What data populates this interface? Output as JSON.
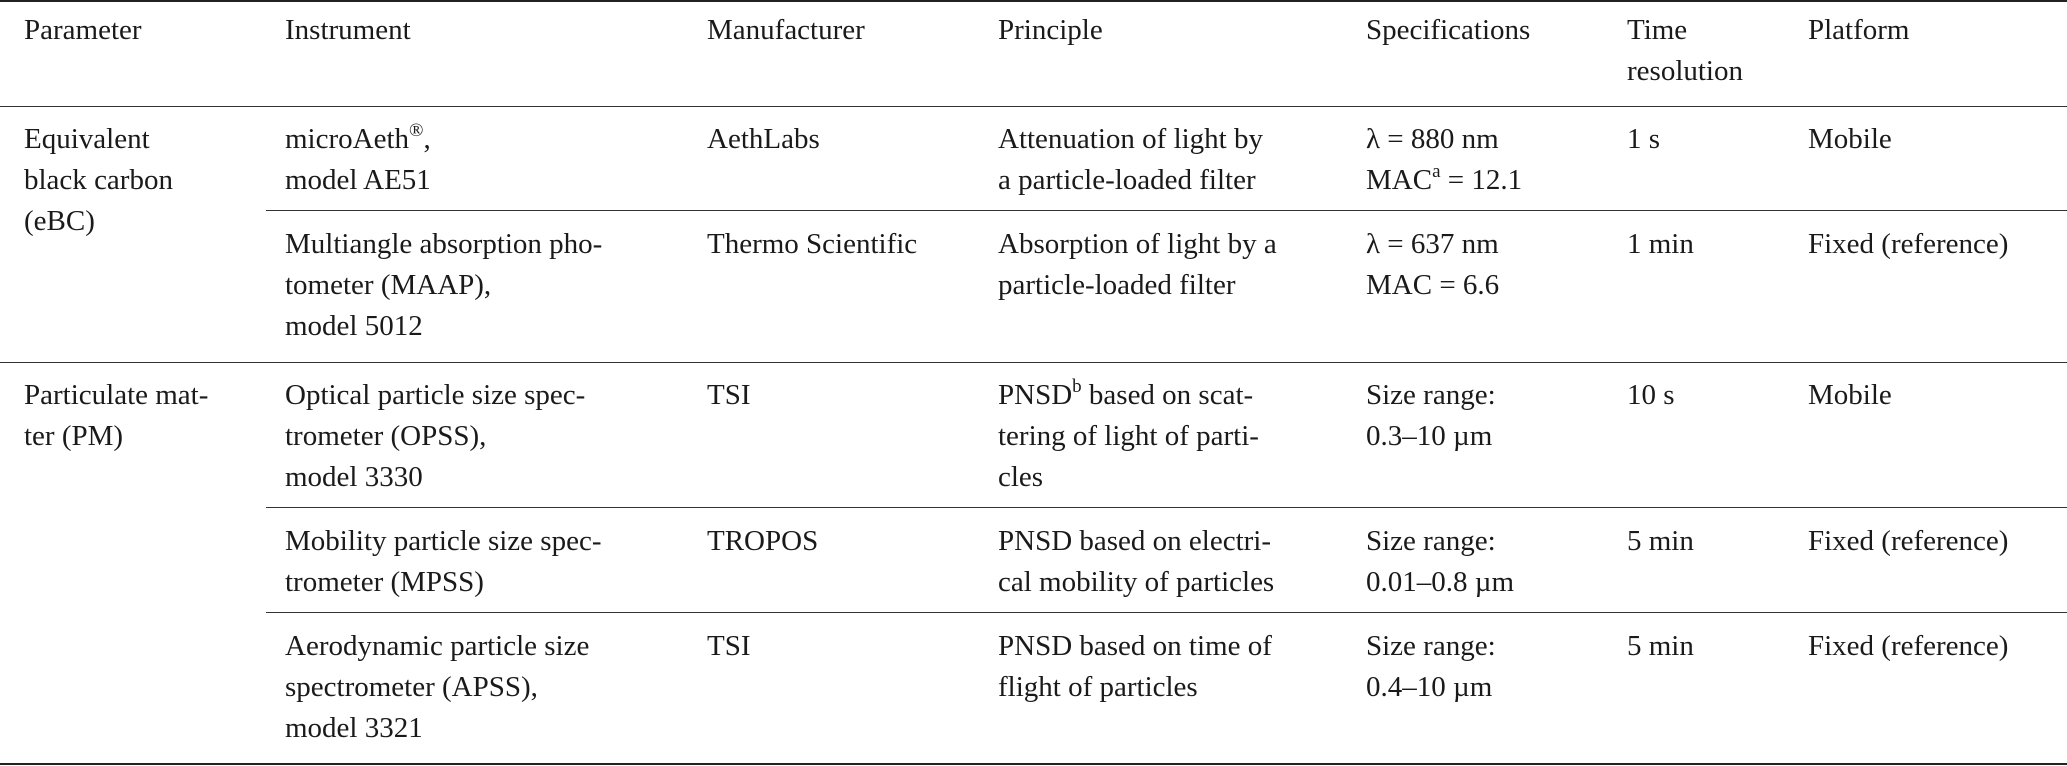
{
  "table": {
    "headers": {
      "parameter": "Parameter",
      "instrument": "Instrument",
      "manufacturer": "Manufacturer",
      "principle": "Principle",
      "specifications": "Specifications",
      "time_resolution": [
        "Time",
        "resolution"
      ],
      "platform": "Platform"
    },
    "groups": [
      {
        "parameter": [
          "Equivalent",
          "black",
          "carbon",
          "(eBC)"
        ],
        "rows": [
          {
            "instrument": [
              "microAeth",
              "®",
              ",",
              "model AE51"
            ],
            "manufacturer": "AethLabs",
            "principle": [
              "Attenuation of light by",
              "a particle-loaded filter"
            ],
            "specifications": [
              "λ = 880 nm",
              "MAC",
              "a",
              " = 12.1"
            ],
            "time_resolution": "1 s",
            "platform": "Mobile"
          },
          {
            "instrument": [
              "Multiangle absorption pho-",
              "tometer (MAAP),",
              "model 5012"
            ],
            "manufacturer": "Thermo Scientific",
            "principle": [
              "Absorption of light by a",
              "particle-loaded filter"
            ],
            "specifications": [
              "λ = 637 nm",
              "MAC = 6.6"
            ],
            "time_resolution": "1 min",
            "platform": "Fixed (reference)"
          }
        ]
      },
      {
        "parameter": [
          "Particulate mat-",
          "ter (PM)"
        ],
        "rows": [
          {
            "instrument": [
              "Optical particle size spec-",
              "trometer (OPSS),",
              "model 3330"
            ],
            "manufacturer": "TSI",
            "principle": [
              "PNSD",
              "b",
              " based on scat-",
              "tering of light of parti-",
              "cles"
            ],
            "specifications": [
              "Size range:",
              "0.3–10 µm"
            ],
            "time_resolution": "10 s",
            "platform": "Mobile"
          },
          {
            "instrument": [
              "Mobility particle size spec-",
              "trometer (MPSS)"
            ],
            "manufacturer": "TROPOS",
            "principle": [
              "PNSD based on electri-",
              "cal mobility of particles"
            ],
            "specifications": [
              "Size range:",
              "0.01–0.8 µm"
            ],
            "time_resolution": "5 min",
            "platform": "Fixed (reference)"
          },
          {
            "instrument": [
              "Aerodynamic particle size",
              "spectrometer (APSS),",
              "model 3321"
            ],
            "manufacturer": "TSI",
            "principle": [
              "PNSD based on time of",
              "flight of particles"
            ],
            "specifications": [
              "Size range:",
              "0.4–10 µm"
            ],
            "time_resolution": "5 min",
            "platform": "Fixed (reference)"
          }
        ]
      }
    ]
  }
}
